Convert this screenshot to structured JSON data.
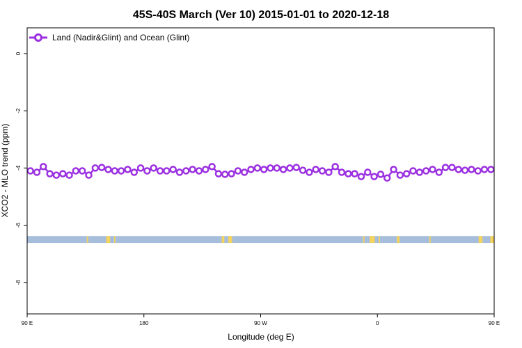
{
  "chart_data": {
    "type": "line",
    "title": "45S-40S March (Ver 10)   2015-01-01 to 2020-12-18",
    "xlabel": "Longitude (deg E)",
    "ylabel": "XCO2 - MLO trend (ppm)",
    "xlim": [
      90,
      450
    ],
    "ylim": [
      -9.1,
      0.9
    ],
    "x_ticks": [
      {
        "value": 90,
        "label": "90 E"
      },
      {
        "value": 180,
        "label": "180"
      },
      {
        "value": 270,
        "label": "90 W"
      },
      {
        "value": 360,
        "label": "0"
      },
      {
        "value": 450,
        "label": "90 E"
      }
    ],
    "y_ticks": [
      0,
      -2,
      -4,
      -6,
      -8
    ],
    "grid": false,
    "legend_position": "top-left",
    "colors": {
      "series": "#9b30e0",
      "ocean_band": "#a6bddb",
      "land": "#f4d35e"
    },
    "series": [
      {
        "name": "Land (Nadir&Glint) and Ocean (Glint)",
        "x": [
          92.5,
          97.5,
          102.5,
          107.5,
          112.5,
          117.5,
          122.5,
          127.5,
          132.5,
          137.5,
          142.5,
          147.5,
          152.5,
          157.5,
          162.5,
          167.5,
          172.5,
          177.5,
          182.5,
          187.5,
          192.5,
          197.5,
          202.5,
          207.5,
          212.5,
          217.5,
          222.5,
          227.5,
          232.5,
          237.5,
          242.5,
          247.5,
          252.5,
          257.5,
          262.5,
          267.5,
          272.5,
          277.5,
          282.5,
          287.5,
          292.5,
          297.5,
          302.5,
          307.5,
          312.5,
          317.5,
          322.5,
          327.5,
          332.5,
          337.5,
          342.5,
          347.5,
          352.5,
          357.5,
          362.5,
          367.5,
          372.5,
          377.5,
          382.5,
          387.5,
          392.5,
          397.5,
          402.5,
          407.5,
          412.5,
          417.5,
          422.5,
          427.5,
          432.5,
          437.5,
          442.5,
          447.5
        ],
        "y": [
          -4.1,
          -4.15,
          -3.95,
          -4.2,
          -4.25,
          -4.2,
          -4.25,
          -4.1,
          -4.1,
          -4.25,
          -4.0,
          -3.98,
          -4.05,
          -4.1,
          -4.1,
          -4.05,
          -4.15,
          -4.0,
          -4.1,
          -4.0,
          -4.1,
          -4.1,
          -4.05,
          -4.15,
          -4.1,
          -4.05,
          -4.1,
          -4.05,
          -3.95,
          -4.2,
          -4.22,
          -4.2,
          -4.1,
          -4.15,
          -4.05,
          -4.0,
          -4.05,
          -4.0,
          -4.0,
          -4.05,
          -4.0,
          -3.98,
          -4.08,
          -4.15,
          -4.05,
          -4.1,
          -4.15,
          -3.95,
          -4.15,
          -4.2,
          -4.2,
          -4.3,
          -4.15,
          -4.3,
          -4.22,
          -4.35,
          -4.05,
          -4.25,
          -4.2,
          -4.1,
          -4.15,
          -4.1,
          -4.05,
          -4.15,
          -3.98,
          -3.98,
          -4.05,
          -4.08,
          -4.05,
          -4.1,
          -4.05,
          -4.05
        ]
      }
    ],
    "land_segments": [
      [
        136,
        137
      ],
      [
        151,
        154
      ],
      [
        157,
        158
      ],
      [
        240,
        242
      ],
      [
        245,
        248
      ],
      [
        349,
        350
      ],
      [
        354,
        358
      ],
      [
        361,
        362
      ],
      [
        375,
        377
      ],
      [
        400,
        401
      ],
      [
        438,
        441
      ],
      [
        447,
        450
      ]
    ]
  }
}
